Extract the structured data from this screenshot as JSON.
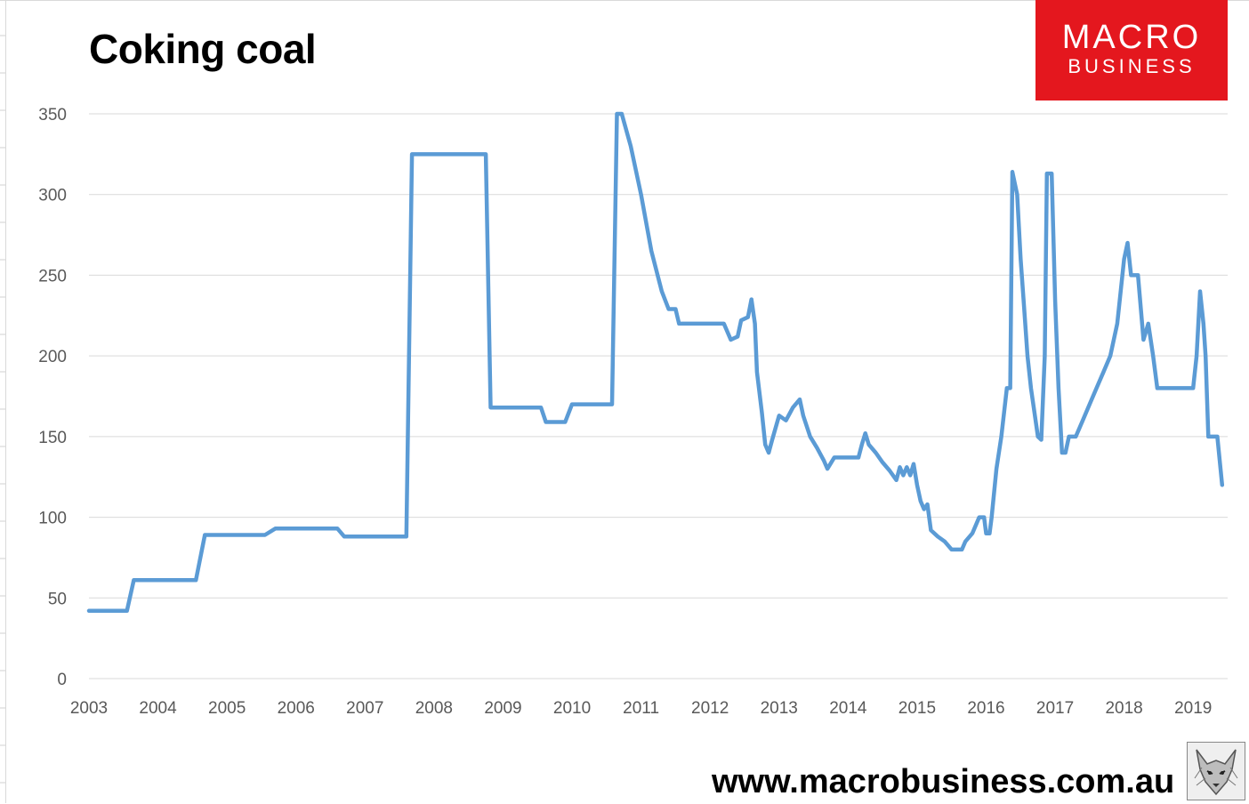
{
  "chart_data": {
    "type": "line",
    "title": "Coking coal",
    "xlabel": "",
    "ylabel": "",
    "xlim": [
      2003.0,
      2019.5
    ],
    "ylim": [
      0,
      350
    ],
    "yticks": [
      0,
      50,
      100,
      150,
      200,
      250,
      300,
      350
    ],
    "xticks": [
      "2003",
      "2004",
      "2005",
      "2006",
      "2007",
      "2008",
      "2009",
      "2010",
      "2011",
      "2012",
      "2013",
      "2014",
      "2015",
      "2016",
      "2017",
      "2018",
      "2019"
    ],
    "grid": true,
    "legend": "none",
    "line_color": "#5b9bd5",
    "series": [
      {
        "name": "",
        "points": [
          [
            2003.0,
            42
          ],
          [
            2003.55,
            42
          ],
          [
            2003.65,
            61
          ],
          [
            2004.55,
            61
          ],
          [
            2004.68,
            89
          ],
          [
            2005.55,
            89
          ],
          [
            2005.7,
            93
          ],
          [
            2006.6,
            93
          ],
          [
            2006.7,
            88
          ],
          [
            2007.6,
            88
          ],
          [
            2007.68,
            325
          ],
          [
            2008.75,
            325
          ],
          [
            2008.82,
            168
          ],
          [
            2009.55,
            168
          ],
          [
            2009.62,
            159
          ],
          [
            2009.9,
            159
          ],
          [
            2010.0,
            170
          ],
          [
            2010.58,
            170
          ],
          [
            2010.65,
            350
          ],
          [
            2010.72,
            350
          ],
          [
            2010.85,
            330
          ],
          [
            2011.0,
            300
          ],
          [
            2011.15,
            265
          ],
          [
            2011.3,
            240
          ],
          [
            2011.4,
            229
          ],
          [
            2011.5,
            229
          ],
          [
            2011.55,
            220
          ],
          [
            2012.2,
            220
          ],
          [
            2012.3,
            210
          ],
          [
            2012.4,
            212
          ],
          [
            2012.45,
            222
          ],
          [
            2012.55,
            224
          ],
          [
            2012.6,
            235
          ],
          [
            2012.65,
            220
          ],
          [
            2012.68,
            190
          ],
          [
            2012.75,
            165
          ],
          [
            2012.8,
            145
          ],
          [
            2012.85,
            140
          ],
          [
            2012.9,
            148
          ],
          [
            2013.0,
            163
          ],
          [
            2013.1,
            160
          ],
          [
            2013.2,
            168
          ],
          [
            2013.3,
            173
          ],
          [
            2013.35,
            163
          ],
          [
            2013.45,
            150
          ],
          [
            2013.55,
            143
          ],
          [
            2013.65,
            135
          ],
          [
            2013.7,
            130
          ],
          [
            2013.8,
            137
          ],
          [
            2014.15,
            137
          ],
          [
            2014.2,
            145
          ],
          [
            2014.25,
            152
          ],
          [
            2014.3,
            145
          ],
          [
            2014.4,
            140
          ],
          [
            2014.5,
            134
          ],
          [
            2014.6,
            129
          ],
          [
            2014.7,
            123
          ],
          [
            2014.75,
            131
          ],
          [
            2014.8,
            126
          ],
          [
            2014.85,
            131
          ],
          [
            2014.9,
            126
          ],
          [
            2014.95,
            133
          ],
          [
            2015.0,
            120
          ],
          [
            2015.05,
            110
          ],
          [
            2015.1,
            105
          ],
          [
            2015.15,
            108
          ],
          [
            2015.2,
            92
          ],
          [
            2015.3,
            88
          ],
          [
            2015.4,
            85
          ],
          [
            2015.5,
            80
          ],
          [
            2015.65,
            80
          ],
          [
            2015.7,
            85
          ],
          [
            2015.8,
            90
          ],
          [
            2015.9,
            100
          ],
          [
            2015.97,
            100
          ],
          [
            2016.0,
            90
          ],
          [
            2016.05,
            90
          ],
          [
            2016.08,
            100
          ],
          [
            2016.15,
            130
          ],
          [
            2016.22,
            150
          ],
          [
            2016.3,
            180
          ],
          [
            2016.35,
            180
          ],
          [
            2016.38,
            314
          ],
          [
            2016.45,
            300
          ],
          [
            2016.5,
            260
          ],
          [
            2016.55,
            230
          ],
          [
            2016.6,
            200
          ],
          [
            2016.65,
            180
          ],
          [
            2016.7,
            165
          ],
          [
            2016.75,
            150
          ],
          [
            2016.8,
            148
          ],
          [
            2016.85,
            200
          ],
          [
            2016.88,
            313
          ],
          [
            2016.95,
            313
          ],
          [
            2017.0,
            234
          ],
          [
            2017.05,
            180
          ],
          [
            2017.1,
            140
          ],
          [
            2017.15,
            140
          ],
          [
            2017.2,
            150
          ],
          [
            2017.3,
            150
          ],
          [
            2017.4,
            160
          ],
          [
            2017.5,
            170
          ],
          [
            2017.6,
            180
          ],
          [
            2017.7,
            190
          ],
          [
            2017.8,
            200
          ],
          [
            2017.9,
            220
          ],
          [
            2018.0,
            260
          ],
          [
            2018.05,
            270
          ],
          [
            2018.1,
            250
          ],
          [
            2018.2,
            250
          ],
          [
            2018.28,
            210
          ],
          [
            2018.35,
            220
          ],
          [
            2018.42,
            200
          ],
          [
            2018.48,
            180
          ],
          [
            2018.65,
            180
          ],
          [
            2018.8,
            180
          ],
          [
            2019.0,
            180
          ],
          [
            2019.05,
            200
          ],
          [
            2019.1,
            240
          ],
          [
            2019.15,
            220
          ],
          [
            2019.18,
            200
          ],
          [
            2019.22,
            150
          ],
          [
            2019.35,
            150
          ],
          [
            2019.42,
            120
          ]
        ]
      }
    ]
  },
  "branding": {
    "logo_line1": "MACRO",
    "logo_line2": "BUSINESS",
    "logo_color": "#e4171e",
    "website": "www.macrobusiness.com.au",
    "mascot_icon": "wolf-icon"
  }
}
